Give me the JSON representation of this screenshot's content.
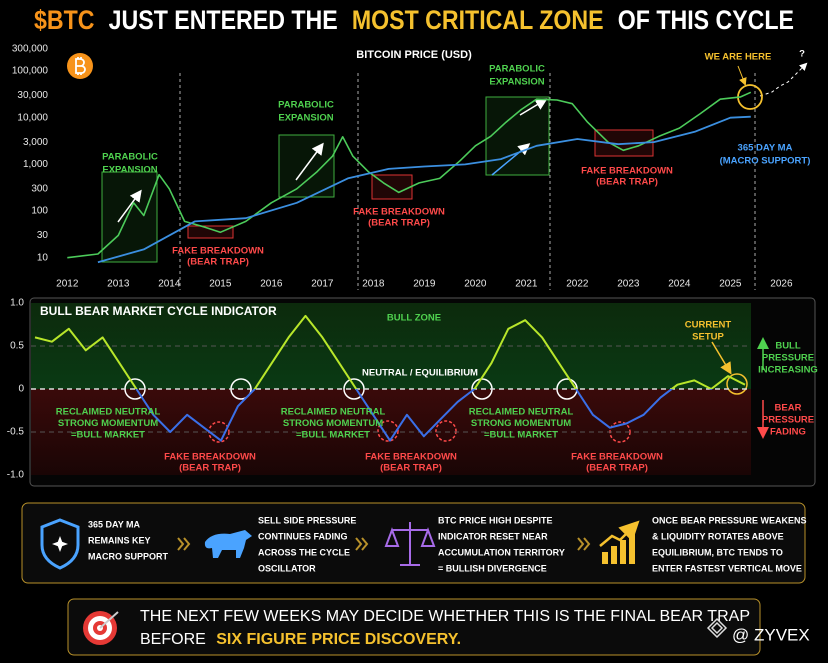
{
  "header": {
    "title": [
      "$BTC",
      "JUST ENTERED THE",
      "MOST CRITICAL ZONE",
      "OF THIS CYCLE"
    ]
  },
  "chart_data": [
    {
      "type": "line",
      "title": "BITCOIN PRICE (USD)",
      "log_y": true,
      "grid": false,
      "xlim": [
        2011.7,
        2026.6
      ],
      "xticks": [
        2012,
        2013,
        2014,
        2015,
        2016,
        2017,
        2018,
        2019,
        2020,
        2021,
        2022,
        2023,
        2024,
        2025,
        2026
      ],
      "ylim": [
        6,
        400000
      ],
      "yticks": [
        10,
        30,
        100,
        300,
        {
          "value": 1000,
          "label": "1,000"
        },
        {
          "value": 3000,
          "label": "3,000"
        },
        {
          "value": 10000,
          "label": "10,000"
        },
        {
          "value": 30000,
          "label": "30,000"
        },
        {
          "value": 100000,
          "label": "100,000"
        },
        {
          "value": 300000,
          "label": "300,000"
        }
      ],
      "series": [
        {
          "color": "#4ccb5a",
          "x": [
            2012.0,
            2012.6,
            2013.0,
            2013.3,
            2013.5,
            2013.8,
            2014.0,
            2014.3,
            2014.7,
            2015.0,
            2015.5,
            2016.0,
            2016.5,
            2016.9,
            2017.2,
            2017.4,
            2017.6,
            2017.9,
            2018.2,
            2018.5,
            2018.9,
            2019.3,
            2019.7,
            2020.0,
            2020.3,
            2020.6,
            2020.9,
            2021.2,
            2021.6,
            2021.9,
            2022.2,
            2022.6,
            2022.9,
            2023.2,
            2023.6,
            2024.0,
            2024.4,
            2024.8,
            2025.2,
            2025.4
          ],
          "values": [
            10,
            12,
            30,
            150,
            80,
            600,
            300,
            60,
            45,
            35,
            60,
            150,
            300,
            700,
            1500,
            3900,
            1500,
            700,
            400,
            250,
            400,
            500,
            1200,
            2500,
            4000,
            8000,
            15000,
            25000,
            24000,
            20000,
            8000,
            3000,
            2000,
            2500,
            4000,
            6000,
            12000,
            25000,
            28000,
            35000
          ]
        },
        {
          "name": "365 DAY MA",
          "color": "#3b8fe0",
          "x": [
            2012.6,
            2013.5,
            2014.5,
            2015.5,
            2016.5,
            2017.5,
            2018.3,
            2019.0,
            2019.8,
            2020.5,
            2021.2,
            2022.0,
            2022.8,
            2023.5,
            2024.3,
            2025.0,
            2025.4
          ],
          "values": [
            8,
            15,
            60,
            70,
            150,
            500,
            800,
            900,
            1000,
            1300,
            2500,
            3500,
            2700,
            3000,
            5000,
            10000,
            10500
          ]
        }
      ],
      "annotations": [
        {
          "lines": [
            "PARABOLIC",
            "EXPANSION"
          ]
        },
        {
          "lines": [
            "PARABOLIC",
            "EXPANSION"
          ]
        },
        {
          "lines": [
            "PARABOLIC",
            "EXPANSION"
          ]
        },
        {
          "lines": [
            "FAKE BREAKDOWN",
            "(BEAR TRAP)"
          ]
        },
        {
          "lines": [
            "FAKE BREAKDOWN",
            "(BEAR TRAP)"
          ]
        },
        {
          "lines": [
            "FAKE BREAKDOWN",
            "(BEAR TRAP)"
          ]
        },
        {
          "lines": [
            "WE ARE HERE"
          ]
        },
        {
          "lines": [
            "?"
          ]
        },
        {
          "lines": [
            "(MACRO SUPPORT)"
          ]
        }
      ]
    },
    {
      "type": "oscillator",
      "title": "BULL BEAR MARKET CYCLE INDICATOR",
      "grid": true,
      "ylim": [
        -1,
        1
      ],
      "yticks": [
        {
          "value": 1,
          "label": "1.0"
        },
        0.5,
        0,
        -0.5,
        {
          "value": -1,
          "label": "-1.0"
        }
      ],
      "positive_color": "#b8e62a",
      "negative_color": "#3a6fe8",
      "values": [
        0.6,
        0.55,
        0.7,
        0.45,
        0.6,
        0.3,
        0.0,
        -0.3,
        -0.5,
        -0.3,
        -0.45,
        -0.6,
        -0.2,
        0.0,
        0.3,
        0.6,
        0.85,
        0.6,
        0.3,
        0.0,
        -0.3,
        -0.6,
        -0.3,
        -0.55,
        -0.35,
        -0.15,
        0.0,
        0.3,
        0.7,
        0.8,
        0.6,
        0.3,
        0.0,
        -0.3,
        -0.45,
        -0.4,
        -0.3,
        -0.1,
        0.05,
        0.1,
        0.0,
        0.15,
        0.05
      ],
      "annotations": [
        {
          "lines": [
            "BULL ZONE"
          ]
        },
        {
          "lines": [
            "NEUTRAL / EQUILIBRIUM"
          ]
        },
        {
          "lines": [
            "RECLAIMED NEUTRAL",
            "STRONG MOMENTUM",
            "=BULL MARKET"
          ]
        },
        {
          "lines": [
            "RECLAIMED NEUTRAL",
            "STRONG MOMENTUM",
            "=BULL MARKET"
          ]
        },
        {
          "lines": [
            "RECLAIMED NEUTRAL",
            "STRONG MOMENTUM",
            "=BULL MARKET"
          ]
        },
        {
          "lines": [
            "FAKE BREAKDOWN",
            "(BEAR TRAP)"
          ]
        },
        {
          "lines": [
            "FAKE BREAKDOWN",
            "(BEAR TRAP)"
          ]
        },
        {
          "lines": [
            "FAKE BREAKDOWN",
            "(BEAR TRAP)"
          ]
        },
        {
          "lines": [
            "CURRENT",
            "SETUP"
          ]
        },
        {
          "lines": [
            "BULL",
            "PRESSURE",
            "INCREASING"
          ]
        },
        {
          "lines": [
            "BEAR",
            "PRESSURE",
            "FADING"
          ]
        }
      ]
    }
  ],
  "info_panel": [
    {
      "lines": [
        "365 DAY MA",
        "REMAINS KEY",
        "MACRO SUPPORT"
      ]
    },
    {
      "lines": [
        "SELL SIDE PRESSURE",
        "CONTINUES FADING",
        "ACROSS THE CYCLE",
        "OSCILLATOR"
      ]
    },
    {
      "lines": [
        "BTC PRICE HIGH DESPITE",
        "INDICATOR RESET NEAR",
        "ACCUMULATION TERRITORY",
        "= BULLISH DIVERGENCE"
      ]
    },
    {
      "lines": [
        "ONCE BEAR PRESSURE WEAKENS",
        "& LIQUIDITY ROTATES ABOVE",
        "EQUILIBRIUM, BTC TENDS TO",
        "ENTER FASTEST VERTICAL MOVE"
      ]
    }
  ],
  "footer": {
    "line1": "THE NEXT FEW WEEKS MAY DECIDE WHETHER THIS IS THE FINAL BEAR TRAP",
    "line2": [
      "BEFORE",
      "SIX FIGURE PRICE DISCOVERY."
    ]
  },
  "watermark": "@ ZYVEX"
}
